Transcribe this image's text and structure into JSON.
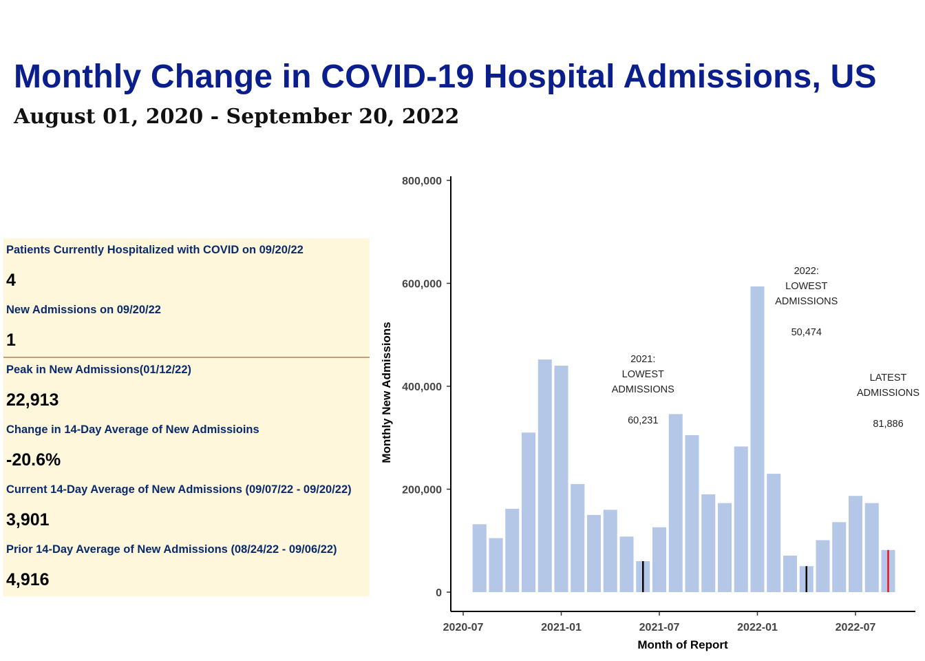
{
  "title": "Monthly Change in COVID-19 Hospital Admissions, US",
  "subtitle": "August 01, 2020 - September 20, 2022",
  "stats": [
    {
      "label": "Patients Currently Hospitalized with COVID on 09/20/22",
      "value": "4"
    },
    {
      "label": "New Admissions on 09/20/22",
      "value": "1"
    },
    {
      "label": "Peak in New Admissions(01/12/22)",
      "value": "22,913"
    },
    {
      "label": "Change in 14-Day Average of New Admissioins",
      "value": "-20.6%"
    },
    {
      "label": "Current 14-Day Average of New Admissions (09/07/22 - 09/20/22)",
      "value": "3,901"
    },
    {
      "label": "Prior 14-Day Average of New Admissions (08/24/22 - 09/06/22)",
      "value": "4,916"
    }
  ],
  "chart_data": {
    "type": "bar",
    "xlabel": "Month of Report",
    "ylabel": "Monthly New Admissions",
    "ylim": [
      0,
      800000
    ],
    "yticks": [
      0,
      200000,
      400000,
      600000,
      800000
    ],
    "ytick_labels": [
      "0",
      "200,000",
      "400,000",
      "600,000",
      "800,000"
    ],
    "xticks": [
      "2020-07",
      "2021-01",
      "2021-07",
      "2022-01",
      "2022-07"
    ],
    "categories": [
      "2020-08",
      "2020-09",
      "2020-10",
      "2020-11",
      "2020-12",
      "2021-01",
      "2021-02",
      "2021-03",
      "2021-04",
      "2021-05",
      "2021-06",
      "2021-07",
      "2021-08",
      "2021-09",
      "2021-10",
      "2021-11",
      "2021-12",
      "2022-01",
      "2022-02",
      "2022-03",
      "2022-04",
      "2022-05",
      "2022-06",
      "2022-07",
      "2022-08",
      "2022-09"
    ],
    "values": [
      132000,
      105000,
      162000,
      310000,
      452000,
      440000,
      210000,
      150000,
      160000,
      108000,
      60231,
      126000,
      346000,
      305000,
      190000,
      173000,
      283000,
      594000,
      230000,
      71000,
      50474,
      101000,
      136000,
      187000,
      173000,
      81886
    ],
    "bar_color": "#b4c7e7",
    "markers": [
      {
        "category": "2021-06",
        "color": "#000000"
      },
      {
        "category": "2022-04",
        "color": "#000000"
      },
      {
        "category": "2022-09",
        "color": "#e8141e"
      }
    ],
    "annotations": [
      {
        "lines": [
          "2021:",
          "LOWEST",
          "ADMISSIONS"
        ],
        "value_label": "60,231",
        "category": "2021-06"
      },
      {
        "lines": [
          "2022:",
          "LOWEST",
          "ADMISSIONS"
        ],
        "value_label": "50,474",
        "category": "2022-04"
      },
      {
        "lines": [
          "LATEST",
          "ADMISSIONS"
        ],
        "value_label": "81,886",
        "category": "2022-09"
      }
    ],
    "grid": false
  }
}
